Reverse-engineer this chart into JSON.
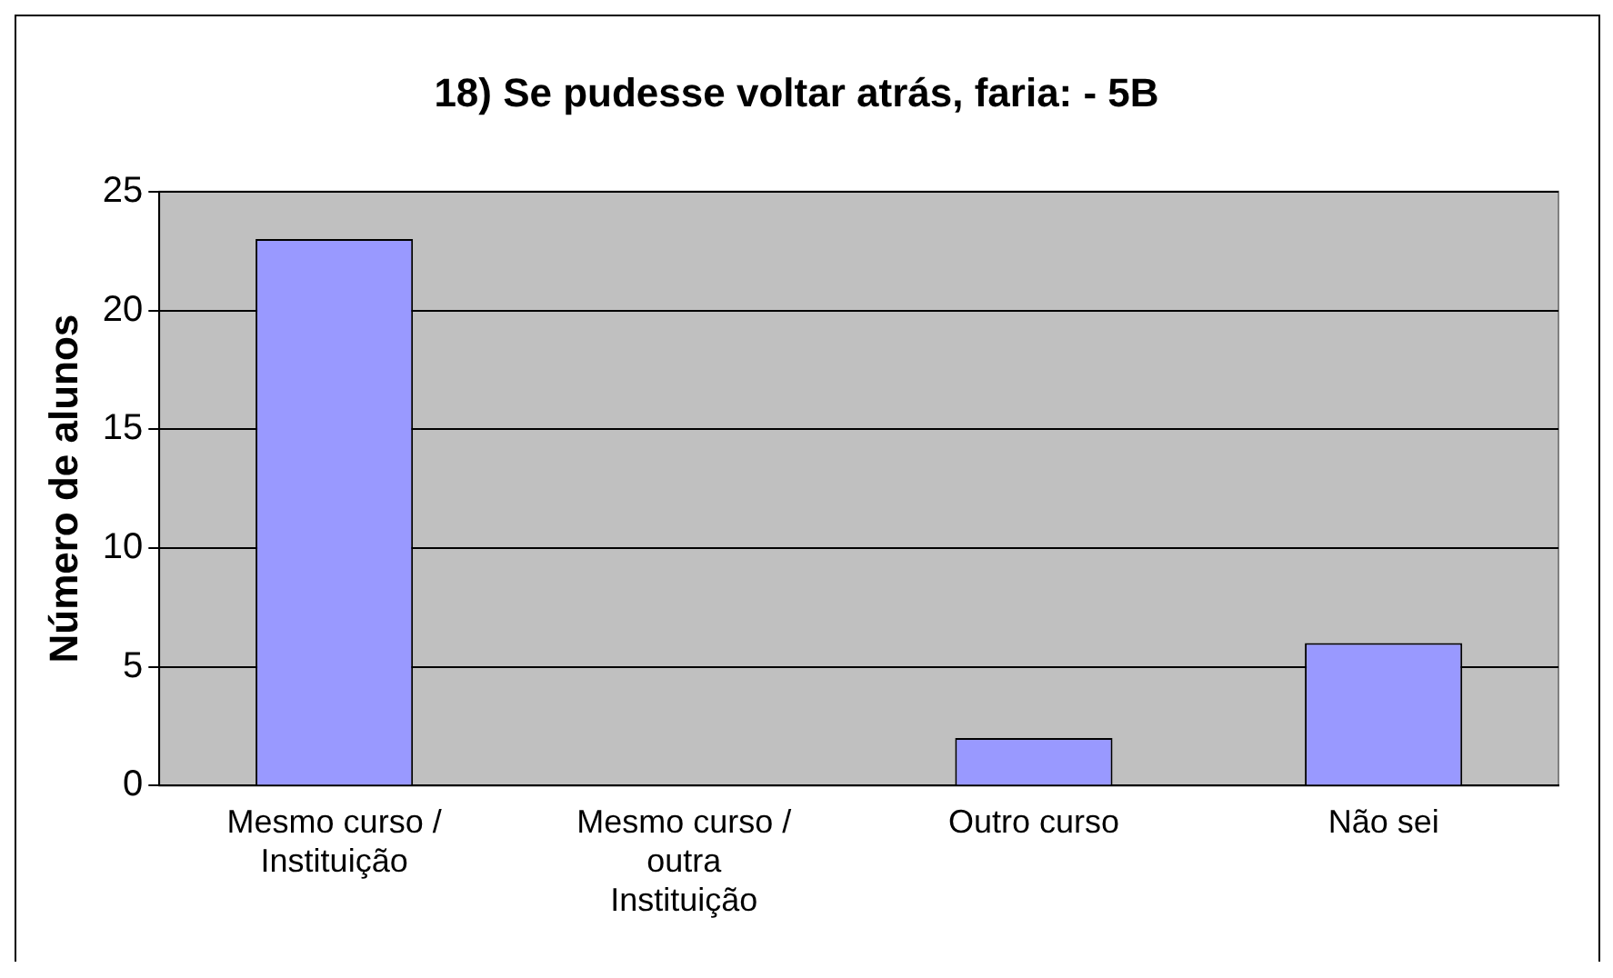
{
  "chart_data": {
    "type": "bar",
    "title": "18) Se pudesse voltar atrás, faria: - 5B",
    "ylabel": "Número de alunos",
    "categories": [
      "Mesmo curso / Instituição",
      "Mesmo curso / outra Instituição",
      "Outro curso",
      "Não sei"
    ],
    "values": [
      23,
      0,
      2,
      6
    ],
    "color": "#9999ff",
    "ylim": [
      0,
      25
    ],
    "yticks": [
      0,
      5,
      10,
      15,
      20,
      25
    ],
    "grid": "y",
    "legend": false
  }
}
